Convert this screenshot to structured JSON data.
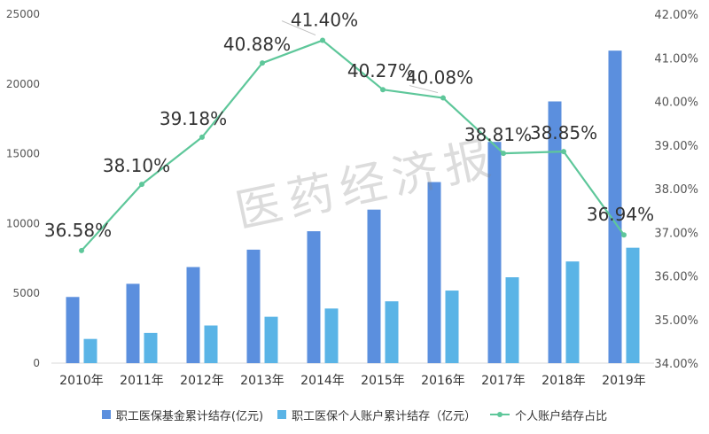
{
  "chart_data": {
    "type": "bar+line",
    "categories": [
      "2010年",
      "2011年",
      "2012年",
      "2013年",
      "2014年",
      "2015年",
      "2016年",
      "2017年",
      "2018年",
      "2019年"
    ],
    "series": [
      {
        "name": "职工医保基金累计结存(亿元)",
        "type": "bar",
        "axis": "left",
        "color": "#5b8fde",
        "values": [
          4741,
          5683,
          6884,
          8130,
          9450,
          10998,
          12972,
          15851,
          18750,
          22388
        ]
      },
      {
        "name": "职工医保个人账户累计结存（亿元）",
        "type": "bar",
        "axis": "left",
        "color": "#5ab4e6",
        "values": [
          1734,
          2165,
          2697,
          3323,
          3913,
          4429,
          5200,
          6152,
          7284,
          8270
        ]
      },
      {
        "name": "个人账户结存占比",
        "type": "line",
        "axis": "right",
        "color": "#5ec79a",
        "values": [
          36.58,
          38.1,
          39.18,
          40.88,
          41.4,
          40.27,
          40.08,
          38.81,
          38.85,
          36.94
        ],
        "labels": [
          "36.58%",
          "38.10%",
          "39.18%",
          "40.88%",
          "41.40%",
          "40.27%",
          "40.08%",
          "38.81%",
          "38.85%",
          "36.94%"
        ]
      }
    ],
    "y_left": {
      "ylim": [
        0,
        25000
      ],
      "ticks": [
        0,
        5000,
        10000,
        15000,
        20000,
        25000
      ],
      "tick_labels": [
        "0",
        "5000",
        "10000",
        "15000",
        "20000",
        "25000"
      ]
    },
    "y_right": {
      "ylim": [
        34,
        42
      ],
      "ticks": [
        34,
        35,
        36,
        37,
        38,
        39,
        40,
        41,
        42
      ],
      "tick_labels": [
        "34.00%",
        "35.00%",
        "36.00%",
        "37.00%",
        "38.00%",
        "39.00%",
        "40.00%",
        "41.00%",
        "42.00%"
      ]
    },
    "grid": false,
    "legend_position": "bottom"
  },
  "watermark": "医药经济报"
}
